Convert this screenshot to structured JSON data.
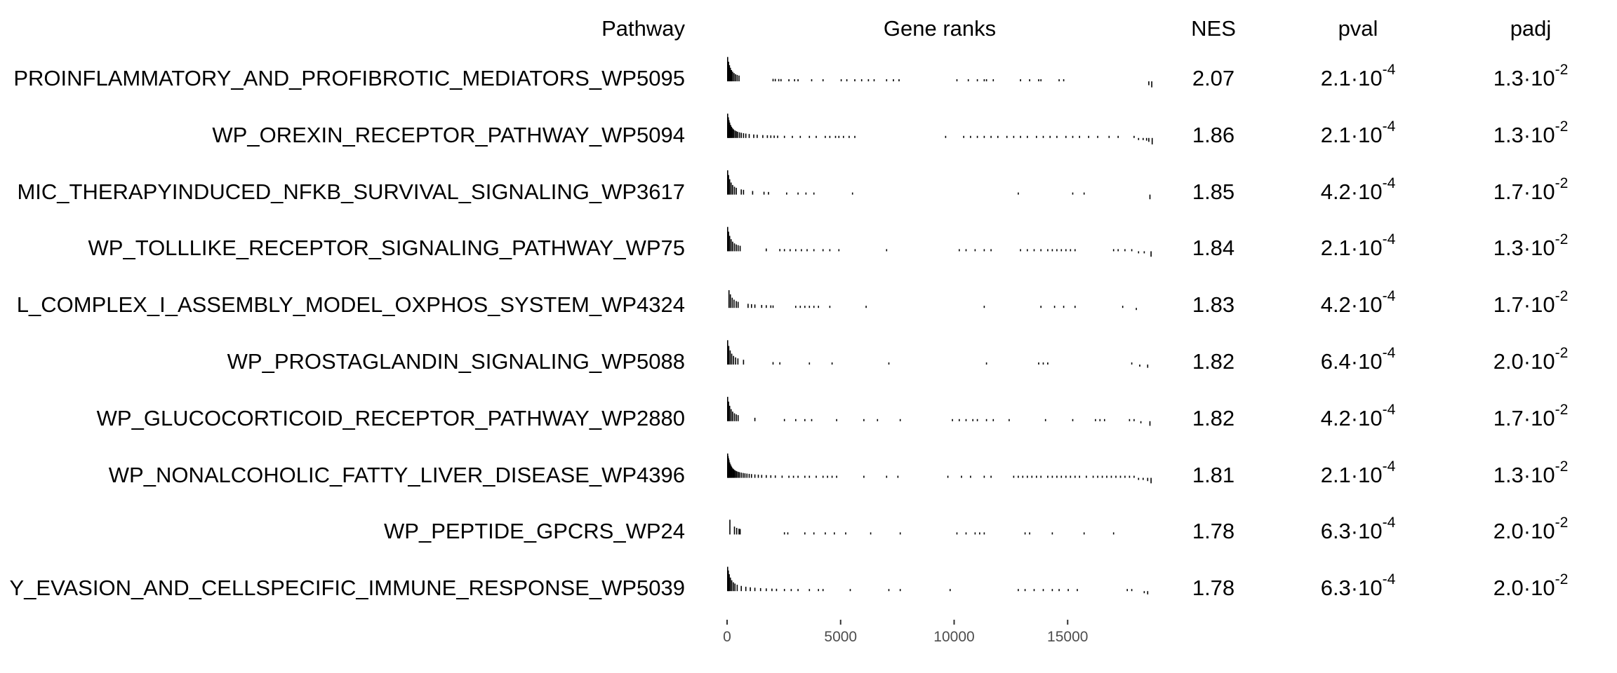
{
  "chart_data": {
    "type": "table",
    "columns": [
      "Pathway",
      "Gene ranks",
      "NES",
      "pval",
      "padj"
    ],
    "x_axis": {
      "range": [
        0,
        18800
      ],
      "ticks": [
        0,
        5000,
        10000,
        15000
      ],
      "tick_labels": [
        "0",
        "5000",
        "10000",
        "15000"
      ]
    },
    "times_ten": "·10",
    "rows": [
      {
        "pathway": "PROINFLAMMATORY_AND_PROFIBROTIC_MEDIATORS_WP5095",
        "nes": "2.07",
        "pval": {
          "m": "2.1",
          "e": "-4"
        },
        "padj": {
          "m": "1.3",
          "e": "-2"
        },
        "ranks": [
          0,
          40,
          80,
          120,
          170,
          220,
          280,
          350,
          420,
          500,
          2000,
          2100,
          2250,
          2350,
          2700,
          2950,
          3100,
          3700,
          4200,
          5000,
          5250,
          5600,
          5900,
          6200,
          6450,
          7000,
          7300,
          7550,
          10100,
          10600,
          11000,
          11300,
          11400,
          11700,
          12900,
          13300,
          13700,
          13800,
          14600,
          14800,
          18550,
          18680
        ]
      },
      {
        "pathway": "WP_OREXIN_RECEPTOR_PATHWAY_WP5094",
        "nes": "1.86",
        "pval": {
          "m": "2.1",
          "e": "-4"
        },
        "padj": {
          "m": "1.3",
          "e": "-2"
        },
        "ranks": [
          0,
          30,
          60,
          90,
          130,
          170,
          210,
          260,
          320,
          380,
          440,
          520,
          600,
          700,
          800,
          950,
          1150,
          1300,
          1550,
          1750,
          1900,
          2050,
          2200,
          2500,
          2850,
          3200,
          3600,
          3900,
          4300,
          4500,
          4750,
          4900,
          5100,
          5350,
          5600,
          9600,
          10400,
          10700,
          11000,
          11300,
          11600,
          11900,
          12300,
          12600,
          12900,
          13200,
          13600,
          13900,
          14200,
          14500,
          14900,
          15200,
          15500,
          15900,
          16300,
          16800,
          17200,
          17900,
          18100,
          18300,
          18450,
          18550,
          18700
        ]
      },
      {
        "pathway": "MIC_THERAPYINDUCED_NFKB_SURVIVAL_SIGNALING_WP3617",
        "nes": "1.85",
        "pval": {
          "m": "4.2",
          "e": "-4"
        },
        "padj": {
          "m": "1.7",
          "e": "-2"
        },
        "ranks": [
          0,
          40,
          90,
          150,
          220,
          300,
          380,
          600,
          700,
          1100,
          1600,
          1800,
          2600,
          3100,
          3450,
          3800,
          5500,
          12800,
          15200,
          15700,
          18600
        ]
      },
      {
        "pathway": "WP_TOLLLIKE_RECEPTOR_SIGNALING_PATHWAY_WP75",
        "nes": "1.84",
        "pval": {
          "m": "2.1",
          "e": "-4"
        },
        "padj": {
          "m": "1.3",
          "e": "-2"
        },
        "ranks": [
          0,
          40,
          90,
          150,
          220,
          300,
          380,
          460,
          550,
          1700,
          2300,
          2500,
          2750,
          3000,
          3250,
          3500,
          3800,
          4200,
          4500,
          4900,
          7000,
          10200,
          10500,
          10900,
          11300,
          11600,
          12900,
          13200,
          13500,
          13800,
          14100,
          14300,
          14500,
          14700,
          14900,
          15100,
          15300,
          17000,
          17200,
          17500,
          17800,
          18100,
          18350,
          18650
        ]
      },
      {
        "pathway": "L_COMPLEX_I_ASSEMBLY_MODEL_OXPHOS_SYSTEM_WP4324",
        "nes": "1.83",
        "pval": {
          "m": "4.2",
          "e": "-4"
        },
        "padj": {
          "m": "1.7",
          "e": "-2"
        },
        "ranks": [
          60,
          120,
          200,
          280,
          380,
          460,
          900,
          1050,
          1200,
          1500,
          1700,
          1900,
          2000,
          3000,
          3200,
          3400,
          3600,
          3800,
          4000,
          4500,
          6100,
          11300,
          13800,
          14400,
          14800,
          15300,
          17400,
          18000
        ]
      },
      {
        "pathway": "WP_PROSTAGLANDIN_SIGNALING_WP5088",
        "nes": "1.82",
        "pval": {
          "m": "6.4",
          "e": "-4"
        },
        "padj": {
          "m": "2.0",
          "e": "-2"
        },
        "ranks": [
          0,
          50,
          110,
          180,
          260,
          350,
          450,
          700,
          2000,
          2300,
          3600,
          4600,
          7100,
          11400,
          13700,
          13900,
          14100,
          17800,
          18150,
          18500
        ]
      },
      {
        "pathway": "WP_GLUCOCORTICOID_RECEPTOR_PATHWAY_WP2880",
        "nes": "1.82",
        "pval": {
          "m": "4.2",
          "e": "-4"
        },
        "padj": {
          "m": "1.7",
          "e": "-2"
        },
        "ranks": [
          0,
          40,
          90,
          150,
          220,
          300,
          380,
          460,
          1200,
          2500,
          3000,
          3400,
          3700,
          4800,
          6000,
          6600,
          7600,
          9900,
          10200,
          10500,
          10800,
          11000,
          11400,
          11700,
          12400,
          14000,
          15200,
          16200,
          16400,
          16600,
          17700,
          17900,
          18200,
          18600
        ]
      },
      {
        "pathway": "WP_NONALCOHOLIC_FATTY_LIVER_DISEASE_WP4396",
        "nes": "1.81",
        "pval": {
          "m": "2.1",
          "e": "-4"
        },
        "padj": {
          "m": "1.3",
          "e": "-2"
        },
        "ranks": [
          0,
          20,
          40,
          60,
          90,
          120,
          150,
          180,
          220,
          260,
          300,
          350,
          400,
          460,
          520,
          600,
          680,
          760,
          850,
          950,
          1050,
          1200,
          1350,
          1500,
          1700,
          1900,
          2100,
          2400,
          2700,
          2900,
          3100,
          3400,
          3600,
          3900,
          4200,
          4400,
          4600,
          4800,
          6000,
          7000,
          7500,
          9700,
          10300,
          10700,
          11300,
          11600,
          12600,
          12800,
          13000,
          13200,
          13400,
          13600,
          13800,
          14100,
          14300,
          14500,
          14700,
          14900,
          15100,
          15300,
          15500,
          15800,
          16100,
          16300,
          16500,
          16700,
          16900,
          17100,
          17300,
          17500,
          17700,
          17900,
          18100,
          18300,
          18500,
          18650
        ]
      },
      {
        "pathway": "WP_PEPTIDE_GPCRS_WP24",
        "nes": "1.78",
        "pval": {
          "m": "6.3",
          "e": "-4"
        },
        "padj": {
          "m": "2.0",
          "e": "-2"
        },
        "ranks": [
          100,
          300,
          400,
          500,
          550,
          2500,
          2650,
          3400,
          3800,
          4300,
          4700,
          5200,
          6300,
          7600,
          10100,
          10500,
          10900,
          11100,
          11300,
          13100,
          13300,
          14300,
          15700,
          17000
        ]
      },
      {
        "pathway": "Y_EVASION_AND_CELLSPECIFIC_IMMUNE_RESPONSE_WP5039",
        "nes": "1.78",
        "pval": {
          "m": "6.3",
          "e": "-4"
        },
        "padj": {
          "m": "2.0",
          "e": "-2"
        },
        "ranks": [
          0,
          30,
          70,
          120,
          180,
          250,
          320,
          420,
          600,
          800,
          1000,
          1200,
          1450,
          1700,
          1950,
          2150,
          2500,
          2800,
          3100,
          3600,
          4000,
          4200,
          5400,
          7100,
          7600,
          9800,
          12800,
          13100,
          13500,
          13900,
          14300,
          14600,
          15000,
          15400,
          17600,
          17800,
          18350,
          18500
        ]
      }
    ]
  },
  "header": {
    "pathway": "Pathway",
    "gene_ranks": "Gene ranks",
    "nes": "NES",
    "pval": "pval",
    "padj": "padj"
  },
  "colors": {
    "bars": "#000000",
    "axis_text": "#4d4d4d"
  }
}
